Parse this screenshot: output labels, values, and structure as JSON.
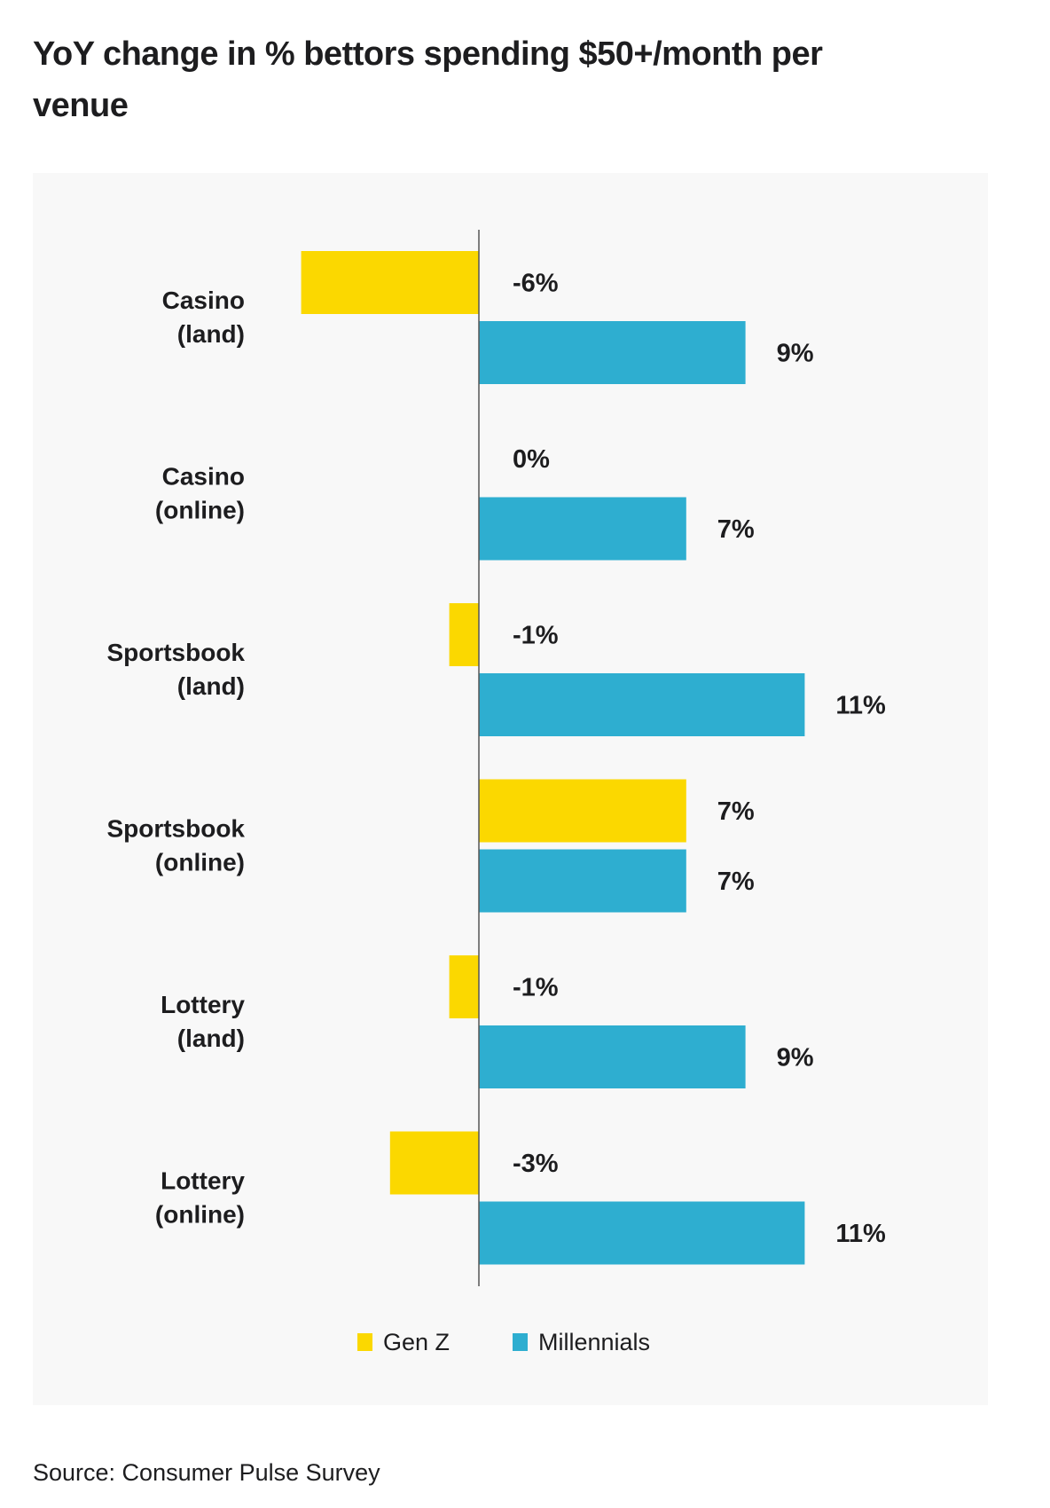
{
  "title": "YoY change in % bettors spending $50+/month per venue",
  "source": "Source: Consumer Pulse Survey",
  "chart_data": {
    "type": "bar",
    "orientation": "horizontal",
    "title": "YoY change in % bettors spending $50+/month per venue",
    "categories": [
      [
        "Casino",
        "(land)"
      ],
      [
        "Casino",
        "(online)"
      ],
      [
        "Sportsbook",
        "(land)"
      ],
      [
        "Sportsbook",
        "(online)"
      ],
      [
        "Lottery",
        "(land)"
      ],
      [
        "Lottery",
        "(online)"
      ]
    ],
    "series": [
      {
        "name": "Gen Z",
        "color": "#FBD800",
        "values": [
          -6,
          0,
          -1,
          7,
          -1,
          -3
        ],
        "labels": [
          "-6%",
          "0%",
          "-1%",
          "7%",
          "-1%",
          "-3%"
        ]
      },
      {
        "name": "Millennials",
        "color": "#2EAED0",
        "values": [
          9,
          7,
          11,
          7,
          9,
          11
        ],
        "labels": [
          "9%",
          "7%",
          "11%",
          "7%",
          "9%",
          "11%"
        ]
      }
    ],
    "xlim": [
      -15,
      15
    ],
    "grid": false,
    "legend": "bottom-center",
    "xlabel": "",
    "ylabel": ""
  }
}
